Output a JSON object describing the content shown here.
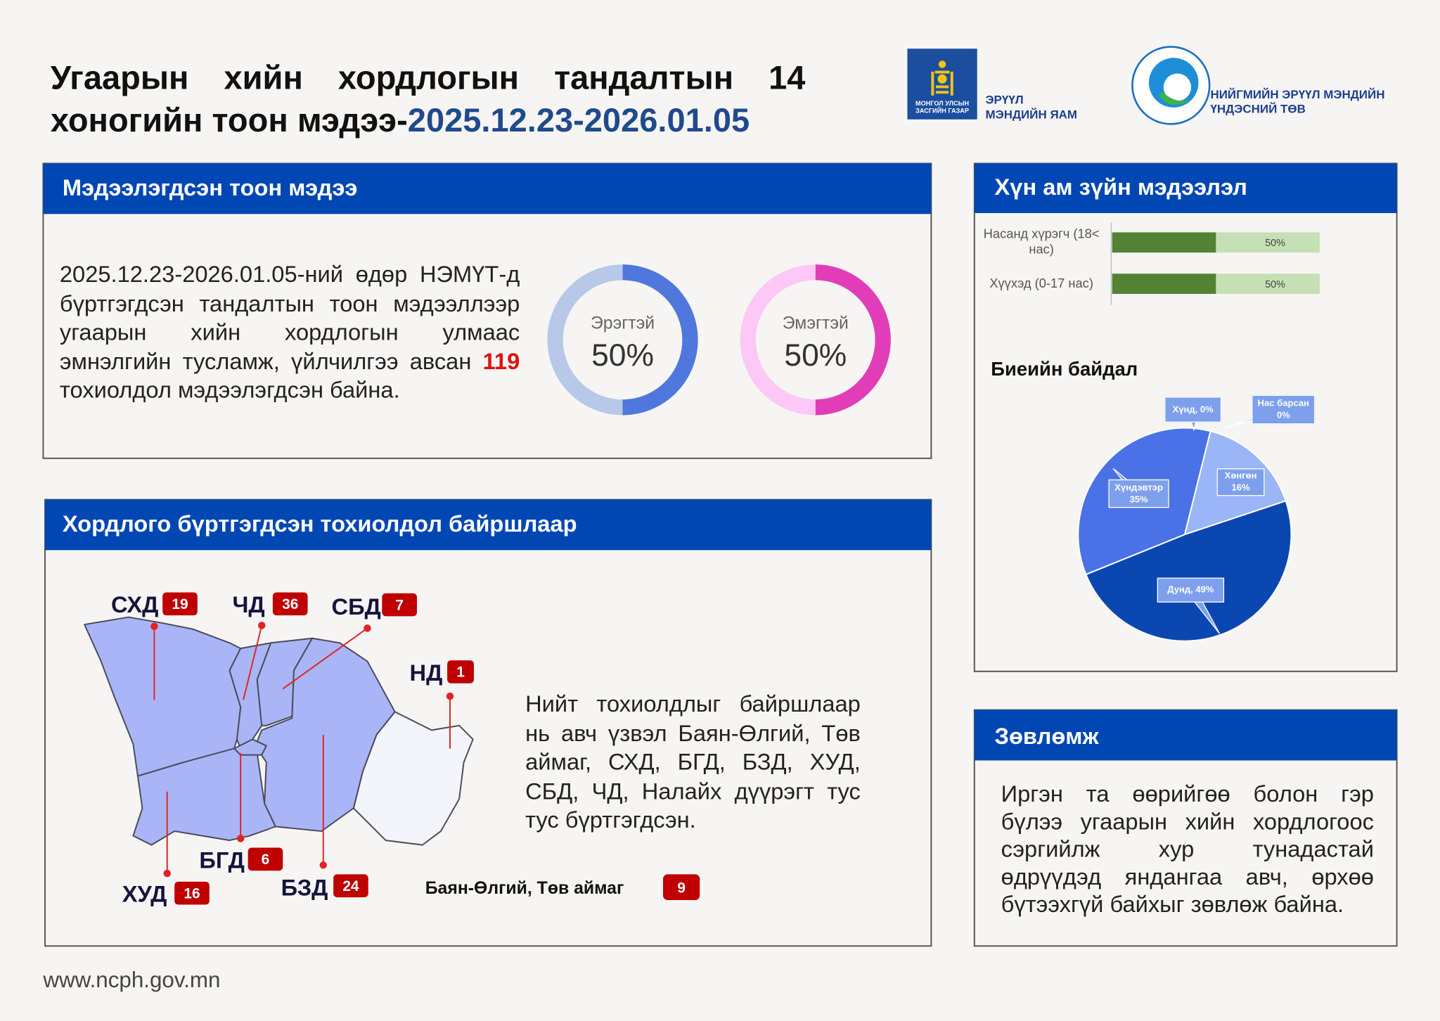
{
  "header": {
    "title": "Угаарын хийн хордлогын тандалтын 14 хоногийн тоон мэдээ-",
    "period": "2025.12.23-2026.01.05"
  },
  "logos": {
    "emblem_caption": [
      "МОНГОЛ УЛСЫН",
      "ЗАСГИЙН ГАЗАР"
    ],
    "ministry": [
      "ЭРҮҮЛ",
      "МЭНДИЙН ЯАМ"
    ],
    "ncph": [
      "НИЙГМИЙН ЭРҮҮЛ МЭНДИЙН",
      "ҮНДЭСНИЙ ТӨВ"
    ]
  },
  "reported": {
    "heading": "Мэдээлэгдсэн тоон мэдээ",
    "text_before": "2025.12.23-2026.01.05-ний өдөр НЭМҮТ-д бүртгэгдсэн тандалтын тоон мэдээллээр угаарын хийн хордлогын улмаас эмнэлгийн тусламж, үйлчилгээ авсан ",
    "count": 119,
    "text_after": " тохиолдол мэдээлэгдсэн байна.",
    "gender": {
      "type": "donut",
      "categories": [
        "Эрэгтэй",
        "Эмэгтэй"
      ],
      "values": [
        50,
        50
      ],
      "value_labels": [
        "50%",
        "50%"
      ],
      "colors": [
        "#4f77dc",
        "#e23db8"
      ],
      "track_colors": [
        "#b7c8e8",
        "#fdc8f5"
      ]
    }
  },
  "locations": {
    "heading": "Хордлого бүртгэгдсэн тохиолдол байршлаар",
    "districts": [
      {
        "name": "СХД",
        "count": 19
      },
      {
        "name": "ЧД",
        "count": 36
      },
      {
        "name": "СБД",
        "count": 7
      },
      {
        "name": "НД",
        "count": 1
      },
      {
        "name": "БГД",
        "count": 6
      },
      {
        "name": "ХУД",
        "count": 16
      },
      {
        "name": "БЗД",
        "count": 24
      }
    ],
    "aimag": {
      "name": "Баян-Өлгий, Төв аймаг",
      "count": 9
    },
    "text": "Нийт тохиолдлыг байршлаар нь авч үзвэл Баян-Өлгий, Төв аймаг, СХД, БГД, БЗД, ХУД, СБД, ЧД, Налайх дүүрэгт тус тус бүртгэгдсэн."
  },
  "demographics": {
    "heading": "Хүн ам зүйн мэдээлэл",
    "age": {
      "type": "bar",
      "categories": [
        "Насанд хүрэгч (18< нас)",
        "Хүүхэд (0-17 нас)"
      ],
      "values": [
        50,
        50
      ],
      "value_labels": [
        "50%",
        "50%"
      ],
      "xlim": [
        0,
        100
      ],
      "color": "#548235",
      "track_color": "#c5e0b4"
    },
    "condition": {
      "type": "pie",
      "title": "Биеийн байдал",
      "labels": [
        "Хүнд, 0%",
        "Нас барсан 0%",
        "Хөнгөн 16%",
        "Дунд, 49%",
        "Хүндэвтэр 35%"
      ],
      "values": [
        0,
        0,
        16,
        49,
        35
      ],
      "colors": [
        "#2a3f8f",
        "#1b2a60",
        "#9bb6f7",
        "#0b47b0",
        "#4a72e6"
      ]
    }
  },
  "advice": {
    "heading": "Зөвлөмж",
    "text": "Иргэн та өөрийгөө болон гэр бүлээ угаарын хийн хордлогоос сэргийлж хур тунадастай өдрүүдэд яндангаа авч, өрхөө бүтээхгүй байхыг зөвлөж байна."
  },
  "footer": {
    "url": "www.ncph.gov.mn"
  }
}
